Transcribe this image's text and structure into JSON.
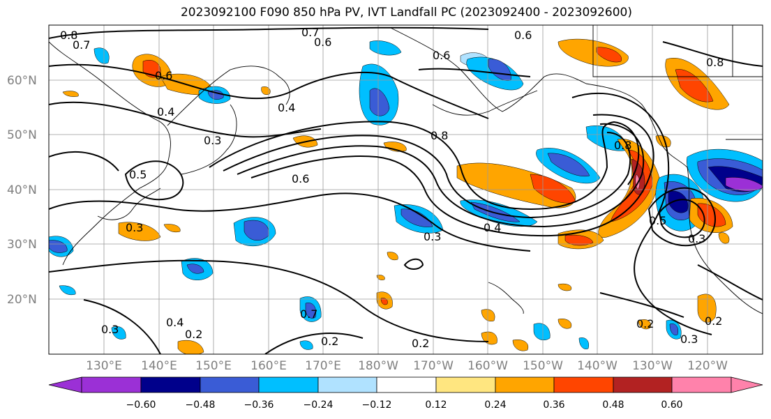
{
  "title": "2023092100 F090 850 hPa PV, IVT Landfall PC (2023092400 - 2023092600)",
  "lat_labels": [
    "60°N",
    "50°N",
    "40°N",
    "30°N",
    "20°N"
  ],
  "lon_labels": [
    "130°E",
    "140°E",
    "150°E",
    "160°E",
    "170°E",
    "180°W",
    "170°W",
    "160°W",
    "150°W",
    "140°W",
    "130°W",
    "120°W"
  ],
  "colorbar": {
    "ticks": [
      "−0.60",
      "−0.48",
      "−0.36",
      "−0.24",
      "−0.12",
      "0.12",
      "0.24",
      "0.36",
      "0.48",
      "0.60"
    ],
    "colors": [
      "#9b30d6",
      "#00008b",
      "#3a5cd6",
      "#00bfff",
      "#b0e2ff",
      "#ffffff",
      "#ffe680",
      "#ffa500",
      "#ff4500",
      "#b22222",
      "#ff82ab"
    ]
  },
  "contour_labels": {
    "l1": "0.8",
    "l2": "0.7",
    "l3": "0.6",
    "l4": "0.7",
    "l5": "0.6",
    "l6": "0.6",
    "l7": "0.4",
    "l8": "0.3",
    "l9": "0.4",
    "l10": "0.5",
    "l11": "0.6",
    "l12": "0.3",
    "l13": "0.8",
    "l14": "0.3",
    "l15": "0.4",
    "l16": "0.8",
    "l17": "0.5",
    "l18": "0.3",
    "l19": "0.2",
    "l20": "0.2",
    "l21": "0.4",
    "l22": "0.2",
    "l23": "0.3",
    "l24": "0.2",
    "l25": "0.6",
    "l26": "0.8",
    "l27": "0.7",
    "l28": "0.3",
    "l29": "0.2"
  }
}
